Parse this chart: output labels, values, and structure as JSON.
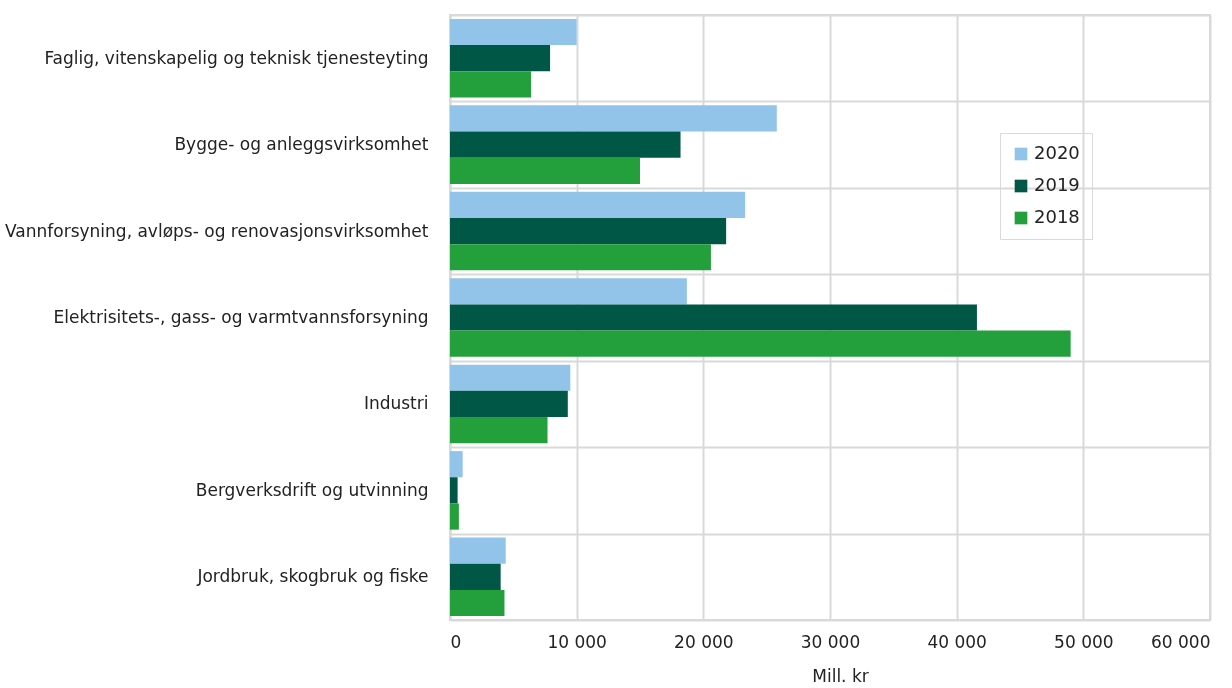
{
  "chart_data": {
    "type": "bar",
    "orientation": "horizontal",
    "xlabel": "Mill. kr",
    "categories": [
      "Faglig, vitenskapelig og teknisk tjenesteyting",
      "Bygge- og anleggsvirksomhet",
      "Vannforsyning, avløps- og renovasjonsvirksomhet",
      "Elektrisitets-, gass- og varmtvannsforsyning",
      "Industri",
      "Bergverksdrift og utvinning",
      "Jordbruk, skogbruk og fiske"
    ],
    "series": [
      {
        "name": "2020",
        "color": "#92c4ea",
        "values": [
          10000,
          25800,
          23300,
          18700,
          9500,
          1000,
          4400
        ]
      },
      {
        "name": "2019",
        "color": "#005745",
        "values": [
          7900,
          18200,
          21800,
          41600,
          9300,
          600,
          4000
        ]
      },
      {
        "name": "2018",
        "color": "#23a03c",
        "values": [
          6400,
          15000,
          20600,
          49000,
          7700,
          700,
          4300
        ]
      }
    ],
    "xlim": [
      0,
      60000
    ],
    "xticks": [
      0,
      {
        "value": 10000,
        "label": "10 000"
      },
      {
        "value": 20000,
        "label": "20 000"
      },
      {
        "value": 30000,
        "label": "30 000"
      },
      {
        "value": 40000,
        "label": "40 000"
      },
      {
        "value": 50000,
        "label": "50 000"
      },
      {
        "value": 60000,
        "label": "60 000"
      }
    ],
    "grid": true,
    "legend": "top right"
  }
}
